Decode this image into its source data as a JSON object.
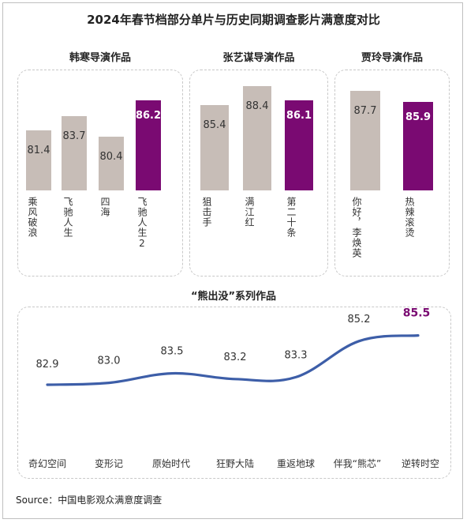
{
  "title": "2024年春节档部分单片与历史同期调查影片满意度对比",
  "source": "Source：中国电影观众满意度调查",
  "colors": {
    "grey": "#c7bdb7",
    "purple": "#7a0a72",
    "line": "#3d5ea8",
    "highlight_text": "#7a0a72"
  },
  "chart_data": [
    {
      "type": "bar",
      "title": "韩寒导演作品",
      "categories": [
        "乘风破浪",
        "飞驰人生",
        "四海",
        "飞驰人生2"
      ],
      "values": [
        81.4,
        83.7,
        80.4,
        86.2
      ],
      "labels": [
        "81.4",
        "83.7",
        "80.4",
        "86.2"
      ],
      "highlight_index": 3
    },
    {
      "type": "bar",
      "title": "张艺谋导演作品",
      "categories": [
        "狙击手",
        "满江红",
        "第二十条"
      ],
      "values": [
        85.4,
        88.4,
        86.1
      ],
      "labels": [
        "85.4",
        "88.4",
        "86.1"
      ],
      "highlight_index": 2
    },
    {
      "type": "bar",
      "title": "贾玲导演作品",
      "categories": [
        "你好，李焕英",
        "热辣滚烫"
      ],
      "values": [
        87.7,
        85.9
      ],
      "labels": [
        "87.7",
        "85.9"
      ],
      "highlight_index": 1
    },
    {
      "type": "line",
      "title": "“熊出没”系列作品",
      "categories": [
        "奇幻空间",
        "变形记",
        "原始时代",
        "狂野大陆",
        "重返地球",
        "伴我“熊芯”",
        "逆转时空"
      ],
      "values": [
        82.9,
        83.0,
        83.5,
        83.2,
        83.3,
        85.2,
        85.5
      ],
      "labels": [
        "82.9",
        "83.0",
        "83.5",
        "83.2",
        "83.3",
        "85.2",
        "85.5"
      ],
      "highlight_index": 6
    }
  ]
}
